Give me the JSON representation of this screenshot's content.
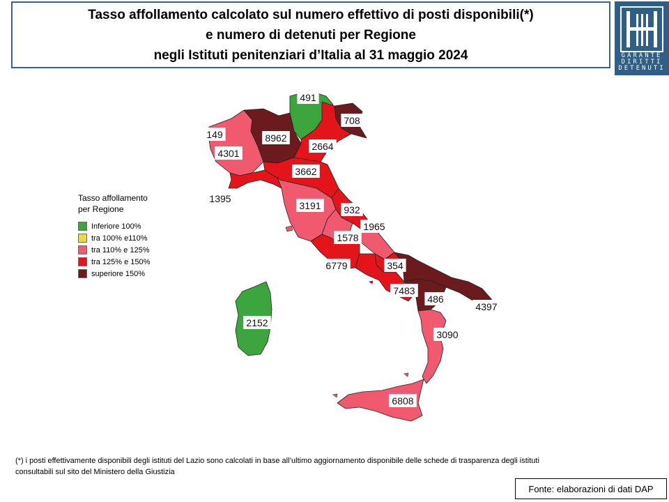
{
  "title": {
    "line1": "Tasso affollamento calcolato sul numero effettivo di posti disponibili(*)",
    "line2": "e numero di detenuti per Regione",
    "line3": "negli Istituti penitenziari d’Italia al 31 maggio 2024"
  },
  "logo": {
    "line1": "GARANTE",
    "line2": "DIRITTI",
    "line3": "DETENUTI"
  },
  "legend": {
    "title_line1": "Tasso affollamento",
    "title_line2": "per Regione",
    "items": [
      {
        "label": "Inferiore 100%",
        "color": "#3da53d"
      },
      {
        "label": "tra 100% e110%",
        "color": "#ebd84a"
      },
      {
        "label": "tra 110% e 125%",
        "color": "#f0596e"
      },
      {
        "label": "tra 125% e 150%",
        "color": "#e3151b"
      },
      {
        "label": "superiore 150%",
        "color": "#6b1a1d"
      }
    ]
  },
  "regions": [
    {
      "name": "Valle d'Aosta",
      "value": "149",
      "color": "#3da53d"
    },
    {
      "name": "Piemonte",
      "value": "4301",
      "color": "#f0596e"
    },
    {
      "name": "Liguria",
      "value": "1395",
      "color": "#e3151b"
    },
    {
      "name": "Lombardia",
      "value": "8962",
      "color": "#6b1a1d"
    },
    {
      "name": "Trentino-Alto Adige",
      "value": "491",
      "color": "#3da53d"
    },
    {
      "name": "Friuli-Venezia Giulia",
      "value": "708",
      "color": "#6b1a1d"
    },
    {
      "name": "Veneto",
      "value": "2664",
      "color": "#e3151b"
    },
    {
      "name": "Emilia-Romagna",
      "value": "3662",
      "color": "#e3151b"
    },
    {
      "name": "Toscana",
      "value": "3191",
      "color": "#f0596e"
    },
    {
      "name": "Marche",
      "value": "932",
      "color": "#e3151b"
    },
    {
      "name": "Umbria",
      "value": "1578",
      "color": "#f0596e"
    },
    {
      "name": "Abruzzo",
      "value": "1965",
      "color": "#f0596e"
    },
    {
      "name": "Lazio",
      "value": "6779",
      "color": "#e3151b"
    },
    {
      "name": "Molise",
      "value": "354",
      "color": "#e3151b"
    },
    {
      "name": "Campania",
      "value": "7483",
      "color": "#e3151b"
    },
    {
      "name": "Puglia",
      "value": "4397",
      "color": "#6b1a1d"
    },
    {
      "name": "Basilicata",
      "value": "486",
      "color": "#6b1a1d"
    },
    {
      "name": "Calabria",
      "value": "3090",
      "color": "#f0596e"
    },
    {
      "name": "Sicilia",
      "value": "6808",
      "color": "#f0596e"
    },
    {
      "name": "Sardegna",
      "value": "2152",
      "color": "#3da53d"
    }
  ],
  "footnote": {
    "line1": "(*) i posti effettivamente disponibili  degli istituti del Lazio sono calcolati in base all’ultimo aggiornamento disponibile  delle schede di trasparenza degli istituti",
    "line2": "consultabili sul sito del Ministero della Giustizia"
  },
  "source": "Fonte: elaborazioni di dati DAP"
}
